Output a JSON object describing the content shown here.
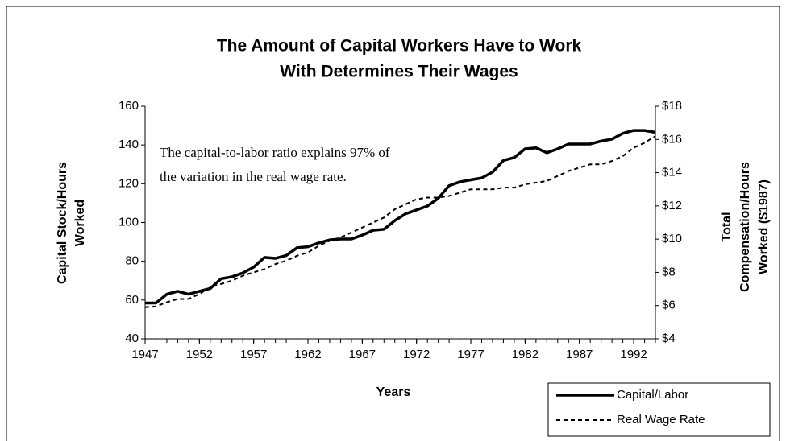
{
  "chart_data": {
    "type": "line",
    "title": [
      "The Amount of Capital Workers Have to Work",
      "With Determines Their Wages"
    ],
    "annotation": [
      "The capital-to-labor ratio explains 97% of",
      "the variation in the real wage rate."
    ],
    "xlabel": "Years",
    "ylabel": [
      "Capital Stock/Hours",
      "Worked"
    ],
    "y2label": [
      "Total",
      "Compensation/Hours",
      "Worked ($1987)"
    ],
    "x": [
      1947,
      1948,
      1949,
      1950,
      1951,
      1952,
      1953,
      1954,
      1955,
      1956,
      1957,
      1958,
      1959,
      1960,
      1961,
      1962,
      1963,
      1964,
      1965,
      1966,
      1967,
      1968,
      1969,
      1970,
      1971,
      1972,
      1973,
      1974,
      1975,
      1976,
      1977,
      1978,
      1979,
      1980,
      1981,
      1982,
      1983,
      1984,
      1985,
      1986,
      1987,
      1988,
      1989,
      1990,
      1991,
      1992,
      1993,
      1994
    ],
    "series": [
      {
        "name": "Capital/Labor",
        "color": "#000000",
        "line_style": "solid",
        "axis": "y",
        "values": [
          58.5,
          58.5,
          63,
          64.5,
          63,
          64.5,
          66,
          71,
          72,
          74,
          77,
          82,
          81.5,
          83,
          87,
          87.5,
          89.5,
          91,
          91.5,
          91.5,
          93.5,
          96,
          96.5,
          101,
          104.5,
          106.5,
          108.5,
          112.5,
          119,
          121,
          122,
          123,
          126,
          132,
          133.5,
          138,
          138.5,
          136,
          138,
          140.5,
          140.5,
          140.5,
          142,
          143,
          146,
          147.5,
          147.5,
          146.5
        ]
      },
      {
        "name": "Real Wage Rate",
        "color": "#000000",
        "line_style": "dashed",
        "axis": "y2",
        "values": [
          5.9,
          5.95,
          6.2,
          6.4,
          6.4,
          6.7,
          7.1,
          7.3,
          7.5,
          7.8,
          8.0,
          8.2,
          8.5,
          8.7,
          9.0,
          9.2,
          9.6,
          9.9,
          10.1,
          10.4,
          10.7,
          11.0,
          11.3,
          11.8,
          12.1,
          12.4,
          12.5,
          12.5,
          12.6,
          12.8,
          13.0,
          13.0,
          13.0,
          13.1,
          13.1,
          13.3,
          13.4,
          13.5,
          13.8,
          14.1,
          14.3,
          14.5,
          14.5,
          14.7,
          15.0,
          15.5,
          15.8,
          16.2
        ]
      }
    ],
    "xlim": [
      1947,
      1994
    ],
    "xticks": [
      1947,
      1952,
      1957,
      1962,
      1967,
      1972,
      1977,
      1982,
      1987,
      1992
    ],
    "ylim": [
      40,
      160
    ],
    "yticks": [
      40,
      60,
      80,
      100,
      120,
      140,
      160
    ],
    "y2lim": [
      4,
      18
    ],
    "y2ticks": [
      {
        "value": 4,
        "label": "$4"
      },
      {
        "value": 6,
        "label": "$6"
      },
      {
        "value": 8,
        "label": "$8"
      },
      {
        "value": 10,
        "label": "$10"
      },
      {
        "value": 12,
        "label": "$12"
      },
      {
        "value": 14,
        "label": "$14"
      },
      {
        "value": 16,
        "label": "$16"
      },
      {
        "value": 18,
        "label": "$18"
      }
    ],
    "legend": "lower right"
  }
}
